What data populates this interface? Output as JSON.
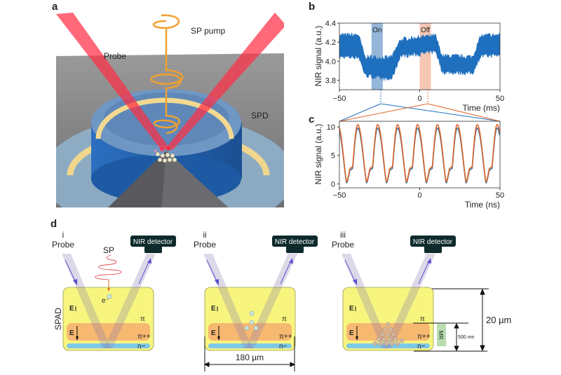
{
  "panels": {
    "a": "a",
    "b": "b",
    "c": "c",
    "d": "d"
  },
  "panel_a": {
    "probe": "Probe",
    "sp_pump": "SP pump",
    "spd": "SPD"
  },
  "panel_d": {
    "spad": "SPAD",
    "probe": "Probe",
    "nir_detector": "NIR detector",
    "sp": "SP",
    "electron": "e⁻",
    "e_field": "E",
    "pi": "π",
    "pi_pp": "π++",
    "n_minus": "n−",
    "sub": [
      "i",
      "ii",
      "iii"
    ],
    "width_label": "180 µm",
    "height_label": "20 µm",
    "mr_thickness": "500 nm",
    "mr": "MR"
  },
  "colors": {
    "signal": "#1f6fbf",
    "on_band": "#5b8fc4",
    "off_band": "#f0a88a",
    "trace_on": "#3b6ea0",
    "trace_off": "#e0672a",
    "spad_yellow": "#f7f57e",
    "pi_pp_orange": "#f7b870",
    "n_blue": "#7fc9e8",
    "mr_green": "#b9dcb0"
  },
  "chart_data": [
    {
      "type": "area",
      "panel": "b",
      "xlabel": "Time (ms)",
      "ylabel": "NIR signal (a.u.)",
      "xlim": [
        -50,
        50
      ],
      "ylim": [
        3.7,
        4.4
      ],
      "xticks": [
        "-50",
        "0",
        "50"
      ],
      "yticks": [
        "3.8",
        "4.0",
        "4.2",
        "4.4"
      ],
      "bands": [
        {
          "label": "On",
          "x": [
            -30,
            -23
          ]
        },
        {
          "label": "Off",
          "x": [
            0,
            7
          ]
        }
      ],
      "envelope": [
        [
          -50,
          4.04,
          4.28
        ],
        [
          -38,
          4.04,
          4.28
        ],
        [
          -34,
          3.85,
          4.05
        ],
        [
          -20,
          3.8,
          4.04
        ],
        [
          -17,
          3.82,
          4.06
        ],
        [
          -12,
          4.05,
          4.23
        ],
        [
          0,
          4.07,
          4.26
        ],
        [
          10,
          4.1,
          4.27
        ],
        [
          14,
          3.88,
          4.06
        ],
        [
          33,
          3.87,
          4.05
        ],
        [
          38,
          4.05,
          4.27
        ],
        [
          50,
          4.06,
          4.28
        ]
      ]
    },
    {
      "type": "line",
      "panel": "c",
      "xlabel": "Time (ns)",
      "ylabel": "NIR signal (a.u.)",
      "xlim": [
        -50,
        50
      ],
      "ylim": [
        -0.7,
        11
      ],
      "xticks": [
        "-50",
        "0",
        "50"
      ],
      "yticks": [
        "0",
        "5",
        "10"
      ],
      "period_ns": 12.4,
      "first_peak_ns": -38.6,
      "series": [
        {
          "state": "On",
          "peak": 9.8,
          "min": 0.0
        },
        {
          "state": "Off",
          "peak": 10.4,
          "min": 0.2
        }
      ]
    }
  ]
}
